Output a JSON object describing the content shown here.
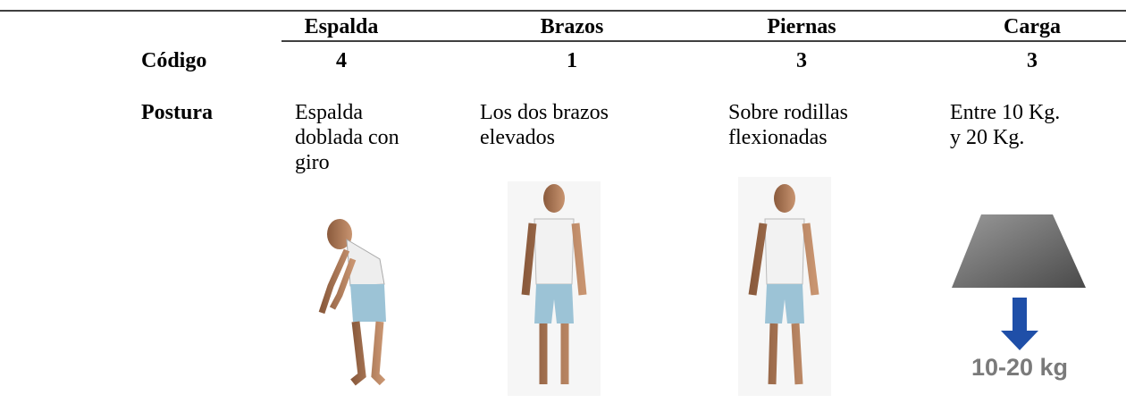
{
  "table": {
    "header": [
      "Espalda",
      "Brazos",
      "Piernas",
      "Carga"
    ],
    "rows": [
      {
        "label": "Código",
        "cells": [
          "4",
          "1",
          "3",
          "3"
        ]
      },
      {
        "label": "Postura",
        "cells": [
          [
            "Espalda",
            "doblada con",
            "giro"
          ],
          [
            "Los dos brazos",
            "elevados"
          ],
          [
            "Sobre rodillas",
            "flexionadas"
          ],
          [
            "Entre 10 Kg.",
            "y 20 Kg."
          ]
        ]
      }
    ],
    "load_label": "10-20 kg"
  }
}
